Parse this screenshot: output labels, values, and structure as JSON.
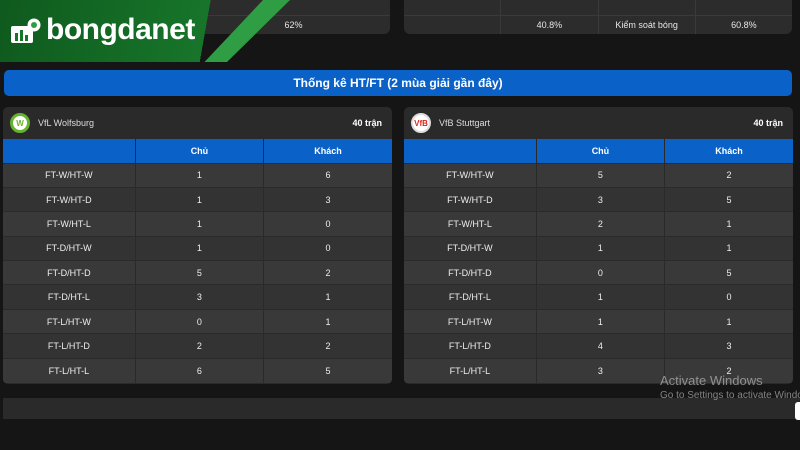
{
  "top_stats": {
    "left_row": {
      "value": "62%"
    },
    "right_row": {
      "home": "40.8%",
      "label": "Kiểm soát bóng",
      "away": "60.8%"
    }
  },
  "logo": {
    "text": "bongdanet"
  },
  "section_title": "Thống kê HT/FT (2 mùa giải gần đây)",
  "columns": {
    "home": "Chủ",
    "away": "Khách"
  },
  "teams": [
    {
      "name": "VfL Wolfsburg",
      "matches": "40 trận",
      "badge_color": "#65b32e",
      "rows": [
        {
          "label": "FT-W/HT-W",
          "home": "1",
          "away": "6"
        },
        {
          "label": "FT-W/HT-D",
          "home": "1",
          "away": "3"
        },
        {
          "label": "FT-W/HT-L",
          "home": "1",
          "away": "0"
        },
        {
          "label": "FT-D/HT-W",
          "home": "1",
          "away": "0"
        },
        {
          "label": "FT-D/HT-D",
          "home": "5",
          "away": "2"
        },
        {
          "label": "FT-D/HT-L",
          "home": "3",
          "away": "1"
        },
        {
          "label": "FT-L/HT-W",
          "home": "0",
          "away": "1"
        },
        {
          "label": "FT-L/HT-D",
          "home": "2",
          "away": "2"
        },
        {
          "label": "FT-L/HT-L",
          "home": "6",
          "away": "5"
        }
      ]
    },
    {
      "name": "VfB Stuttgart",
      "matches": "40 trận",
      "badge_color": "#e32219",
      "rows": [
        {
          "label": "FT-W/HT-W",
          "home": "5",
          "away": "2"
        },
        {
          "label": "FT-W/HT-D",
          "home": "3",
          "away": "5"
        },
        {
          "label": "FT-W/HT-L",
          "home": "2",
          "away": "1"
        },
        {
          "label": "FT-D/HT-W",
          "home": "1",
          "away": "1"
        },
        {
          "label": "FT-D/HT-D",
          "home": "0",
          "away": "5"
        },
        {
          "label": "FT-D/HT-L",
          "home": "1",
          "away": "0"
        },
        {
          "label": "FT-L/HT-W",
          "home": "1",
          "away": "1"
        },
        {
          "label": "FT-L/HT-D",
          "home": "4",
          "away": "3"
        },
        {
          "label": "FT-L/HT-L",
          "home": "3",
          "away": "2"
        }
      ]
    }
  ],
  "watermark": {
    "title": "Activate Windows",
    "subtitle": "Go to Settings to activate Windows."
  }
}
